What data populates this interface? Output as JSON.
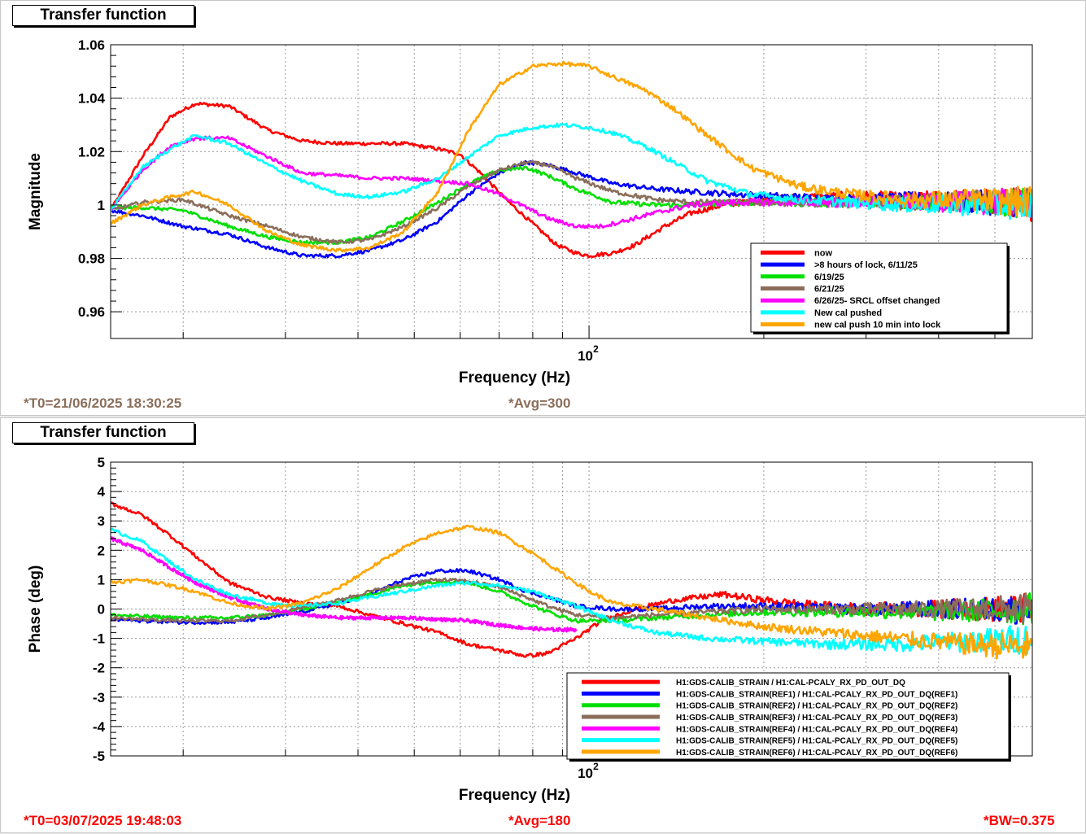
{
  "top": {
    "title": "Transfer function",
    "footer": {
      "t0": "*T0=21/06/2025 18:30:25",
      "avg": "*Avg=300",
      "color": "#8b6e5a"
    }
  },
  "bottom": {
    "title": "Transfer function",
    "footer": {
      "t0": "*T0=03/07/2025 19:48:03",
      "avg": "*Avg=180",
      "bw": "*BW=0.375",
      "color": "#ff0000"
    }
  },
  "chart_data": [
    {
      "type": "line",
      "xlabel": "Frequency (Hz)",
      "ylabel": "Magnitude",
      "x_scale": "log",
      "xlim": [
        15,
        580
      ],
      "ylim": [
        0.95,
        1.06
      ],
      "y_ticks": [
        "0.96",
        "0.98",
        "1",
        "1.02",
        "1.04",
        "1.06"
      ],
      "x_tick_label": "10",
      "x_tick_exp": "2",
      "grid": true,
      "legend_position": "bottom-right",
      "series": [
        {
          "name": "now",
          "color": "#ff0000",
          "x": [
            15,
            17,
            19,
            21,
            24,
            28,
            32,
            37,
            42,
            48,
            55,
            60,
            65,
            72,
            80,
            88,
            95,
            100,
            110,
            120,
            135,
            150,
            170,
            200,
            250,
            300,
            350,
            400,
            450,
            500,
            550,
            580
          ],
          "y": [
            0.998,
            1.018,
            1.033,
            1.038,
            1.037,
            1.028,
            1.024,
            1.023,
            1.023,
            1.023,
            1.021,
            1.019,
            1.012,
            1.002,
            0.993,
            0.985,
            0.982,
            0.981,
            0.982,
            0.985,
            0.992,
            0.997,
            1.0,
            1.002,
            1.003,
            1.003,
            1.002,
            1.002,
            1.002,
            1.001,
            1.001,
            1.0
          ]
        },
        {
          "name": ">8 hours of lock, 6/11/25",
          "color": "#0000ff",
          "x": [
            15,
            17,
            20,
            24,
            28,
            32,
            37,
            42,
            48,
            55,
            62,
            70,
            78,
            85,
            95,
            110,
            130,
            150,
            180,
            220,
            280,
            350,
            450,
            580
          ],
          "y": [
            0.998,
            0.996,
            0.992,
            0.989,
            0.984,
            0.981,
            0.981,
            0.983,
            0.987,
            0.994,
            1.004,
            1.012,
            1.016,
            1.015,
            1.012,
            1.008,
            1.006,
            1.005,
            1.004,
            1.003,
            1.002,
            1.002,
            1.001,
            1.001
          ]
        },
        {
          "name": "6/19/25",
          "color": "#00e000",
          "x": [
            15,
            17,
            20,
            24,
            28,
            32,
            37,
            42,
            48,
            55,
            62,
            70,
            78,
            85,
            95,
            110,
            130,
            150,
            180,
            220,
            280,
            350,
            450,
            580
          ],
          "y": [
            0.999,
            0.999,
            0.998,
            0.992,
            0.988,
            0.986,
            0.986,
            0.988,
            0.994,
            1.001,
            1.008,
            1.013,
            1.014,
            1.011,
            1.006,
            1.001,
            1.0,
            1.0,
            1.001,
            1.001,
            1.001,
            1.001,
            1.001,
            1.001
          ]
        },
        {
          "name": "6/21/25",
          "color": "#8b6e5a",
          "x": [
            15,
            17,
            20,
            24,
            28,
            32,
            37,
            42,
            48,
            55,
            62,
            70,
            78,
            85,
            95,
            110,
            130,
            150,
            180,
            220,
            280,
            350,
            450,
            580
          ],
          "y": [
            0.998,
            1.001,
            1.002,
            0.996,
            0.992,
            0.988,
            0.986,
            0.987,
            0.992,
            0.999,
            1.007,
            1.013,
            1.016,
            1.015,
            1.01,
            1.005,
            1.002,
            1.001,
            1.001,
            1.001,
            1.001,
            1.001,
            1.001,
            1.001
          ]
        },
        {
          "name": "6/26/25- SRCL offset changed",
          "color": "#ff00ff",
          "x": [
            15,
            17,
            19,
            21,
            24,
            28,
            32,
            37,
            42,
            48,
            55,
            62,
            70,
            78,
            85,
            95,
            105,
            115,
            130,
            150,
            180,
            220,
            280,
            350,
            450,
            580
          ],
          "y": [
            0.998,
            1.013,
            1.022,
            1.025,
            1.025,
            1.018,
            1.012,
            1.011,
            1.01,
            1.01,
            1.009,
            1.008,
            1.004,
            0.999,
            0.995,
            0.992,
            0.992,
            0.994,
            0.997,
            1.0,
            1.001,
            1.001,
            1.001,
            1.001,
            1.001,
            1.001
          ]
        },
        {
          "name": "New cal pushed",
          "color": "#00ffff",
          "x": [
            15,
            17,
            19,
            21,
            24,
            28,
            32,
            37,
            42,
            48,
            55,
            62,
            70,
            80,
            90,
            100,
            110,
            125,
            140,
            160,
            190,
            230,
            280,
            350,
            450,
            580
          ],
          "y": [
            0.998,
            1.014,
            1.021,
            1.026,
            1.023,
            1.015,
            1.009,
            1.004,
            1.003,
            1.005,
            1.01,
            1.018,
            1.026,
            1.029,
            1.03,
            1.029,
            1.027,
            1.022,
            1.016,
            1.009,
            1.004,
            1.002,
            1.001,
            1.0,
            1.0,
            1.0
          ]
        },
        {
          "name": "new cal push 10 min into lock",
          "color": "#ffa500",
          "x": [
            15,
            17,
            19,
            21,
            24,
            28,
            32,
            37,
            42,
            48,
            55,
            62,
            70,
            80,
            90,
            100,
            110,
            125,
            140,
            160,
            190,
            230,
            280,
            350,
            450,
            580
          ],
          "y": [
            0.993,
            1.0,
            1.003,
            1.005,
            1.0,
            0.99,
            0.985,
            0.983,
            0.984,
            0.99,
            1.005,
            1.028,
            1.045,
            1.052,
            1.053,
            1.052,
            1.048,
            1.043,
            1.036,
            1.026,
            1.014,
            1.007,
            1.004,
            1.002,
            1.002,
            1.001
          ]
        }
      ]
    },
    {
      "type": "line",
      "xlabel": "Frequency (Hz)",
      "ylabel": "Phase (deg)",
      "x_scale": "log",
      "xlim": [
        15,
        580
      ],
      "ylim": [
        -5,
        5
      ],
      "y_ticks": [
        "-5",
        "-4",
        "-3",
        "-2",
        "-1",
        "0",
        "1",
        "2",
        "3",
        "4",
        "5"
      ],
      "x_tick_label": "10",
      "x_tick_exp": "2",
      "grid": true,
      "legend_position": "bottom-right",
      "series": [
        {
          "name": "H1:GDS-CALIB_STRAIN / H1:CAL-PCALY_RX_PD_OUT_DQ",
          "color": "#ff0000",
          "x": [
            15,
            17,
            19,
            21,
            24,
            28,
            32,
            37,
            42,
            48,
            55,
            62,
            70,
            78,
            85,
            95,
            105,
            120,
            140,
            170,
            200,
            250,
            300,
            400,
            500,
            580
          ],
          "y": [
            3.6,
            3.2,
            2.5,
            1.8,
            0.9,
            0.4,
            0.2,
            0.1,
            -0.2,
            -0.5,
            -0.8,
            -1.2,
            -1.4,
            -1.6,
            -1.5,
            -1.0,
            -0.4,
            0.0,
            0.3,
            0.5,
            0.3,
            0.1,
            0.0,
            0.0,
            0.0,
            0.0
          ]
        },
        {
          "name": "H1:GDS-CALIB_STRAIN(REF1) / H1:CAL-PCALY_RX_PD_OUT_DQ(REF1)",
          "color": "#0000ff",
          "x": [
            15,
            17,
            20,
            24,
            28,
            32,
            37,
            42,
            48,
            55,
            62,
            70,
            78,
            85,
            95,
            110,
            130,
            160,
            200,
            280,
            400,
            580
          ],
          "y": [
            -0.35,
            -0.4,
            -0.45,
            -0.45,
            -0.3,
            -0.1,
            0.2,
            0.5,
            1.0,
            1.3,
            1.3,
            1.0,
            0.6,
            0.4,
            0.1,
            0.0,
            0.0,
            0.1,
            0.1,
            0.0,
            0.0,
            0.0
          ]
        },
        {
          "name": "H1:GDS-CALIB_STRAIN(REF2) / H1:CAL-PCALY_RX_PD_OUT_DQ(REF2)",
          "color": "#00e000",
          "x": [
            15,
            17,
            20,
            24,
            28,
            32,
            37,
            42,
            48,
            55,
            62,
            70,
            78,
            85,
            95,
            110,
            130,
            160,
            200,
            280,
            400,
            580
          ],
          "y": [
            -0.2,
            -0.25,
            -0.3,
            -0.3,
            -0.2,
            0.0,
            0.25,
            0.5,
            0.8,
            0.95,
            0.9,
            0.6,
            0.2,
            -0.1,
            -0.4,
            -0.4,
            -0.3,
            -0.2,
            -0.1,
            -0.1,
            -0.1,
            0.0
          ]
        },
        {
          "name": "H1:GDS-CALIB_STRAIN(REF3) / H1:CAL-PCALY_RX_PD_OUT_DQ(REF3)",
          "color": "#8b6e5a",
          "x": [
            15,
            17,
            20,
            24,
            28,
            32,
            37,
            42,
            48,
            55,
            62,
            70,
            78,
            85,
            95,
            110,
            130,
            160,
            200,
            280,
            400,
            580
          ],
          "y": [
            -0.3,
            -0.35,
            -0.4,
            -0.4,
            -0.2,
            0.05,
            0.3,
            0.6,
            0.85,
            1.0,
            0.95,
            0.75,
            0.4,
            0.1,
            -0.2,
            -0.3,
            -0.2,
            -0.1,
            0.0,
            0.0,
            0.0,
            0.0
          ]
        },
        {
          "name": "H1:GDS-CALIB_STRAIN(REF4) / H1:CAL-PCALY_RX_PD_OUT_DQ(REF4)",
          "color": "#ff00ff",
          "x": [
            15,
            17,
            19,
            21,
            24,
            28,
            32,
            37,
            42,
            48,
            55,
            62,
            70,
            78,
            85,
            95
          ],
          "y": [
            2.4,
            2.0,
            1.4,
            0.9,
            0.4,
            0.0,
            -0.2,
            -0.3,
            -0.3,
            -0.3,
            -0.35,
            -0.4,
            -0.55,
            -0.65,
            -0.7,
            -0.7
          ]
        },
        {
          "name": "H1:GDS-CALIB_STRAIN(REF5) / H1:CAL-PCALY_RX_PD_OUT_DQ(REF5)",
          "color": "#00ffff",
          "x": [
            15,
            17,
            19,
            21,
            24,
            28,
            32,
            37,
            42,
            48,
            55,
            62,
            70,
            80,
            95,
            110,
            130,
            160,
            200,
            260,
            340,
            450,
            580
          ],
          "y": [
            2.7,
            2.3,
            1.6,
            1.0,
            0.5,
            0.2,
            0.1,
            0.2,
            0.4,
            0.6,
            0.8,
            0.9,
            0.8,
            0.6,
            0.1,
            -0.4,
            -0.8,
            -1.0,
            -1.1,
            -1.2,
            -1.2,
            -1.1,
            -1.0
          ]
        },
        {
          "name": "H1:GDS-CALIB_STRAIN(REF6) / H1:CAL-PCALY_RX_PD_OUT_DQ(REF6)",
          "color": "#ffa500",
          "x": [
            15,
            17,
            19,
            21,
            24,
            28,
            32,
            37,
            42,
            48,
            55,
            62,
            70,
            80,
            90,
            100,
            110,
            130,
            160,
            200,
            260,
            340,
            450,
            580
          ],
          "y": [
            0.9,
            1.0,
            0.8,
            0.6,
            0.2,
            0.0,
            0.2,
            0.7,
            1.4,
            2.1,
            2.6,
            2.8,
            2.6,
            1.9,
            1.2,
            0.6,
            0.2,
            0.0,
            -0.3,
            -0.6,
            -0.8,
            -1.0,
            -1.2,
            -1.3
          ]
        }
      ]
    }
  ]
}
